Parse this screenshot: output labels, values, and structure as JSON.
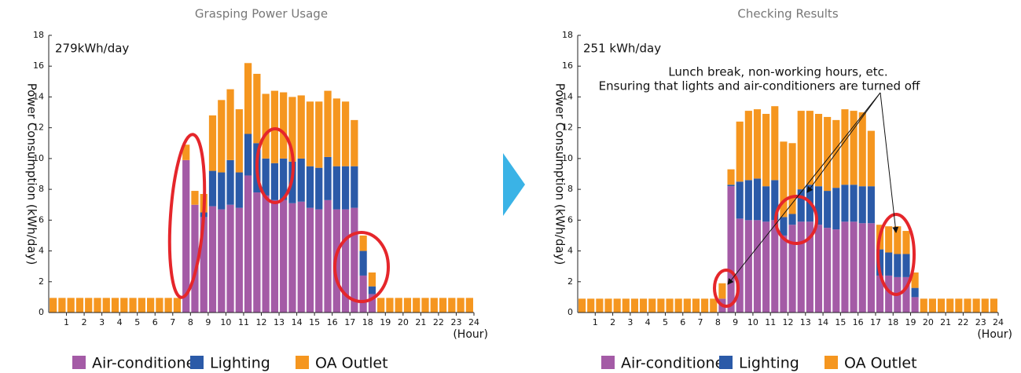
{
  "chart_data": [
    {
      "type": "bar",
      "stacked": true,
      "title": "Grasping Power Usage",
      "ylabel": "Power Consumption (kWh/day)",
      "xlabel": "(Hour)",
      "annotations": [
        "279kWh/day"
      ],
      "x": [
        0.25,
        0.75,
        1.25,
        1.75,
        2.25,
        2.75,
        3.25,
        3.75,
        4.25,
        4.75,
        5.25,
        5.75,
        6.25,
        6.75,
        7.25,
        7.75,
        8.25,
        8.75,
        9.25,
        9.75,
        10.25,
        10.75,
        11.25,
        11.75,
        12.25,
        12.75,
        13.25,
        13.75,
        14.25,
        14.75,
        15.25,
        15.75,
        16.25,
        16.75,
        17.25,
        17.75,
        18.25,
        18.75,
        19.25,
        19.75,
        20.25,
        20.75,
        21.25,
        21.75,
        22.25,
        22.75,
        23.25,
        23.75
      ],
      "series": [
        {
          "name": "Air-conditioner",
          "color": "#a45ba6",
          "values": [
            0,
            0,
            0,
            0,
            0,
            0,
            0,
            0,
            0,
            0,
            0,
            0,
            0,
            0,
            0,
            9.9,
            7.0,
            6.2,
            6.9,
            6.7,
            7.0,
            6.8,
            8.9,
            7.8,
            7.6,
            7.3,
            7.3,
            7.1,
            7.2,
            6.8,
            6.7,
            7.3,
            6.7,
            6.7,
            6.8,
            2.4,
            1.2,
            0,
            0,
            0,
            0,
            0,
            0,
            0,
            0,
            0,
            0,
            0
          ]
        },
        {
          "name": "Lighting",
          "color": "#2b5aa8",
          "values": [
            0,
            0,
            0,
            0,
            0,
            0,
            0,
            0,
            0,
            0,
            0,
            0,
            0,
            0,
            0,
            0,
            0,
            0.3,
            2.3,
            2.4,
            2.9,
            2.3,
            2.7,
            3.2,
            2.4,
            2.4,
            2.7,
            2.7,
            2.8,
            2.7,
            2.7,
            2.8,
            2.8,
            2.8,
            2.7,
            1.6,
            0.5,
            0,
            0,
            0,
            0,
            0,
            0,
            0,
            0,
            0,
            0,
            0
          ]
        },
        {
          "name": "OA Outlet",
          "color": "#f5961f",
          "values": [
            0.95,
            0.95,
            0.95,
            0.95,
            0.95,
            0.95,
            0.95,
            0.95,
            0.95,
            0.95,
            0.95,
            0.95,
            0.95,
            0.95,
            0.95,
            1.0,
            0.9,
            1.2,
            3.6,
            4.7,
            4.6,
            4.1,
            4.6,
            4.5,
            4.2,
            4.7,
            4.3,
            4.2,
            4.1,
            4.2,
            4.3,
            4.3,
            4.4,
            4.2,
            3.0,
            1.0,
            0.9,
            0.95,
            0.95,
            0.95,
            0.95,
            0.95,
            0.95,
            0.95,
            0.95,
            0.95,
            0.95,
            0.95
          ]
        }
      ],
      "xlim": [
        0,
        24
      ],
      "xticks": [
        1,
        2,
        3,
        4,
        5,
        6,
        7,
        8,
        9,
        10,
        11,
        12,
        13,
        14,
        15,
        16,
        17,
        18,
        19,
        20,
        21,
        22,
        23,
        24
      ],
      "ylim": [
        0,
        18
      ],
      "yticks": [
        0,
        2,
        4,
        6,
        8,
        10,
        12,
        14,
        16,
        18
      ]
    },
    {
      "type": "bar",
      "stacked": true,
      "title": "Checking Results",
      "ylabel": "Power Consumption (kWh/day)",
      "xlabel": "(Hour)",
      "annotations": [
        "251 kWh/day",
        "Lunch break, non-working hours, etc.",
        "Ensuring that lights and air-conditioners are turned off"
      ],
      "x": [
        0.25,
        0.75,
        1.25,
        1.75,
        2.25,
        2.75,
        3.25,
        3.75,
        4.25,
        4.75,
        5.25,
        5.75,
        6.25,
        6.75,
        7.25,
        7.75,
        8.25,
        8.75,
        9.25,
        9.75,
        10.25,
        10.75,
        11.25,
        11.75,
        12.25,
        12.75,
        13.25,
        13.75,
        14.25,
        14.75,
        15.25,
        15.75,
        16.25,
        16.75,
        17.25,
        17.75,
        18.25,
        18.75,
        19.25,
        19.75,
        20.25,
        20.75,
        21.25,
        21.75,
        22.25,
        22.75,
        23.25,
        23.75
      ],
      "series": [
        {
          "name": "Air-conditioner",
          "color": "#a45ba6",
          "values": [
            0,
            0,
            0,
            0,
            0,
            0,
            0,
            0,
            0,
            0,
            0,
            0,
            0,
            0,
            0,
            0,
            0.9,
            8.2,
            6.1,
            6.0,
            6.0,
            5.9,
            6.0,
            5.0,
            5.7,
            5.9,
            5.9,
            5.7,
            5.5,
            5.4,
            5.9,
            5.9,
            5.8,
            5.8,
            2.4,
            2.4,
            2.3,
            2.3,
            1.0,
            0,
            0,
            0,
            0,
            0,
            0,
            0,
            0,
            0
          ]
        },
        {
          "name": "Lighting",
          "color": "#2b5aa8",
          "values": [
            0,
            0,
            0,
            0,
            0,
            0,
            0,
            0,
            0,
            0,
            0,
            0,
            0,
            0,
            0,
            0,
            0,
            0.1,
            2.4,
            2.6,
            2.7,
            2.3,
            2.6,
            1.2,
            0.7,
            2.1,
            2.4,
            2.5,
            2.4,
            2.7,
            2.4,
            2.4,
            2.4,
            2.4,
            1.7,
            1.5,
            1.5,
            1.5,
            0.6,
            0,
            0,
            0,
            0,
            0,
            0,
            0,
            0,
            0
          ]
        },
        {
          "name": "OA Outlet",
          "color": "#f5961f",
          "values": [
            0.9,
            0.9,
            0.9,
            0.9,
            0.9,
            0.9,
            0.9,
            0.9,
            0.9,
            0.9,
            0.9,
            0.9,
            0.9,
            0.9,
            0.9,
            0.9,
            1.0,
            1.0,
            3.9,
            4.5,
            4.5,
            4.7,
            4.8,
            4.9,
            4.6,
            5.1,
            4.8,
            4.7,
            4.8,
            4.4,
            4.9,
            4.8,
            4.8,
            3.6,
            1.6,
            1.7,
            1.8,
            1.5,
            1.0,
            0.9,
            0.9,
            0.9,
            0.9,
            0.9,
            0.9,
            0.9,
            0.9,
            0.9
          ]
        }
      ],
      "xlim": [
        0,
        24
      ],
      "xticks": [
        1,
        2,
        3,
        4,
        5,
        6,
        7,
        8,
        9,
        10,
        11,
        12,
        13,
        14,
        15,
        16,
        17,
        18,
        19,
        20,
        21,
        22,
        23,
        24
      ],
      "ylim": [
        0,
        18
      ],
      "yticks": [
        0,
        2,
        4,
        6,
        8,
        10,
        12,
        14,
        16,
        18
      ]
    }
  ]
}
